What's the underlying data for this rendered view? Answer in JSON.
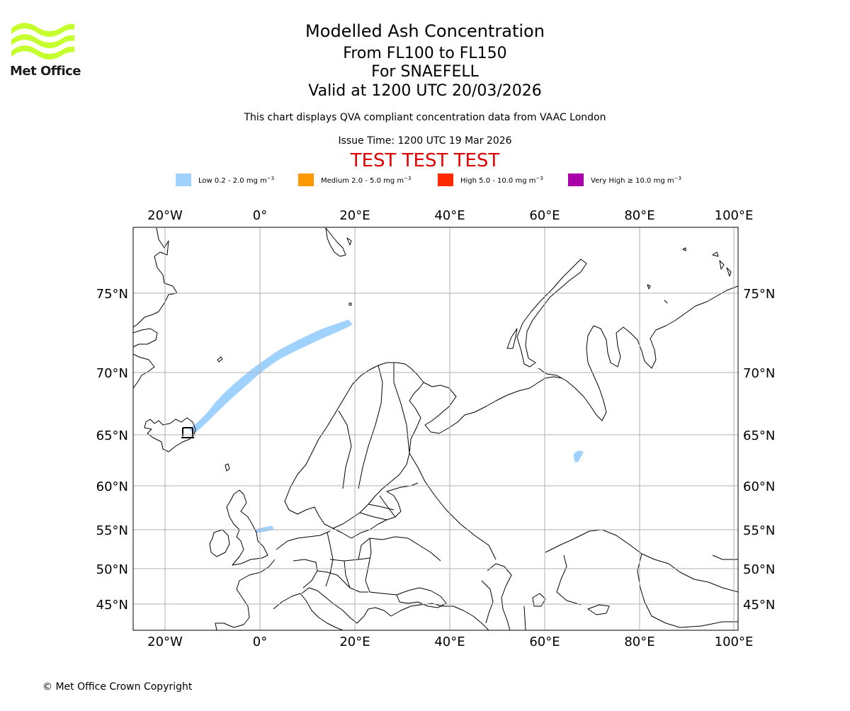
{
  "logo": {
    "text": "Met Office",
    "color": "#c6ff2e"
  },
  "header": {
    "title": "Modelled Ash Concentration",
    "level_range": "From FL100 to FL150",
    "volcano": "For SNAEFELL",
    "valid_time": "Valid at 1200 UTC 20/03/2026",
    "description": "This chart displays QVA compliant concentration data from VAAC London",
    "issue_time": "Issue Time: 1200 UTC 19 Mar 2026",
    "test_banner": "TEST TEST TEST"
  },
  "legend": [
    {
      "label": "Low 0.2 - 2.0 mg m",
      "color": "#a0d2ff"
    },
    {
      "label": "Medium 2.0 - 5.0 mg m",
      "color": "#ff9900"
    },
    {
      "label": "High 5.0 - 10.0 mg m",
      "color": "#ff2a00"
    },
    {
      "label": "Very High ≥ 10.0 mg m",
      "color": "#aa00aa"
    }
  ],
  "legend_unit_exponent": "−3",
  "map": {
    "lon_labels": [
      "20°W",
      "0°",
      "20°E",
      "40°E",
      "60°E",
      "80°E",
      "100°E"
    ],
    "lat_labels": [
      "75°N",
      "70°N",
      "65°N",
      "60°N",
      "55°N",
      "50°N",
      "45°N"
    ],
    "ash_plumes": [
      {
        "name": "main-plume",
        "level": "Low"
      },
      {
        "name": "north-sea-patch",
        "level": "Low"
      },
      {
        "name": "ural-patch",
        "level": "Low"
      }
    ],
    "grid_color": "#b0b0b0",
    "coast_color": "#000000"
  },
  "footer": {
    "copyright": "© Met Office Crown Copyright"
  }
}
